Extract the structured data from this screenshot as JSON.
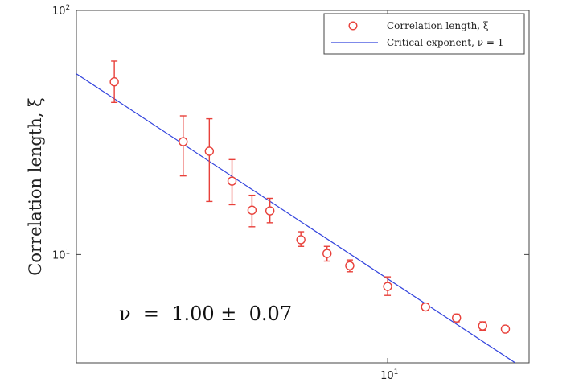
{
  "chart_data": {
    "type": "scatter",
    "xscale": "log",
    "yscale": "log",
    "xlim": [
      1.6,
      23
    ],
    "ylim": [
      3.6,
      100
    ],
    "xticks": [
      {
        "value": 10,
        "base": "10",
        "exp": "1"
      }
    ],
    "yticks": [
      {
        "value": 10,
        "base": "10",
        "exp": "1"
      },
      {
        "value": 100,
        "base": "10",
        "exp": "2"
      }
    ],
    "xlabel": "",
    "ylabel": "Correlation length, ξ",
    "grid": false,
    "legend_position": "top-right",
    "annotation": "ν  =  1.00 ±  0.07",
    "series": [
      {
        "name": "Correlation length, ξ",
        "kind": "markers-with-errorbars",
        "color": "#e8403a",
        "points": [
          {
            "x": 2.0,
            "y": 51,
            "low": 42,
            "high": 62
          },
          {
            "x": 3.0,
            "y": 29,
            "low": 21,
            "high": 37
          },
          {
            "x": 3.5,
            "y": 26.5,
            "low": 16.5,
            "high": 36
          },
          {
            "x": 4.0,
            "y": 20,
            "low": 16,
            "high": 24.5
          },
          {
            "x": 4.5,
            "y": 15.2,
            "low": 13,
            "high": 17.5
          },
          {
            "x": 5.0,
            "y": 15.1,
            "low": 13.5,
            "high": 17
          },
          {
            "x": 6.0,
            "y": 11.5,
            "low": 10.8,
            "high": 12.4
          },
          {
            "x": 7.0,
            "y": 10.1,
            "low": 9.4,
            "high": 10.8
          },
          {
            "x": 8.0,
            "y": 9.0,
            "low": 8.5,
            "high": 9.5
          },
          {
            "x": 10.0,
            "y": 7.4,
            "low": 6.8,
            "high": 8.1
          },
          {
            "x": 12.5,
            "y": 6.1,
            "low": 5.9,
            "high": 6.3
          },
          {
            "x": 15.0,
            "y": 5.5,
            "low": 5.3,
            "high": 5.7
          },
          {
            "x": 17.5,
            "y": 5.1,
            "low": 4.9,
            "high": 5.3
          },
          {
            "x": 20.0,
            "y": 4.95,
            "low": 4.8,
            "high": 5.1
          }
        ]
      },
      {
        "name": "Critical exponent, ν = 1",
        "kind": "line",
        "color": "#3344dd",
        "x": [
          1.6,
          21.2
        ],
        "y": [
          55,
          3.6
        ]
      }
    ]
  }
}
